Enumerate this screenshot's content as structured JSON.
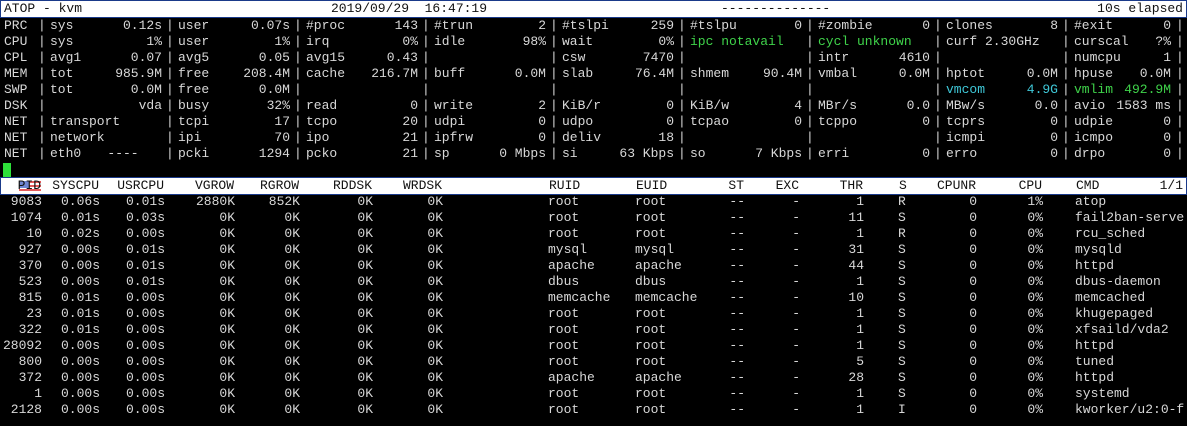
{
  "title_bar": {
    "app": "ATOP - kvm",
    "datetime": "2019/09/29  16:47:19",
    "dashes": "--------------",
    "elapsed": "10s elapsed"
  },
  "system_rows": [
    {
      "label": "PRC",
      "cells": [
        [
          "sys",
          "0.12s"
        ],
        [
          "user",
          "0.07s"
        ],
        [
          "#proc",
          "143"
        ],
        [
          "#trun",
          "2"
        ],
        [
          "#tslpi",
          "259"
        ],
        [
          "#tslpu",
          "0"
        ],
        [
          "#zombie",
          "0"
        ],
        [
          "clones",
          "8"
        ],
        [
          "#exit",
          "0"
        ]
      ]
    },
    {
      "label": "CPU",
      "cells": [
        [
          "sys",
          "1%"
        ],
        [
          "user",
          "1%"
        ],
        [
          "irq",
          "0%"
        ],
        [
          "idle",
          "98%"
        ],
        [
          "wait",
          "0%"
        ],
        [
          "ipc notavail",
          ""
        ],
        [
          "cycl unknown",
          ""
        ],
        [
          "curf 2.30GHz",
          ""
        ],
        [
          "curscal",
          "?%"
        ]
      ]
    },
    {
      "label": "CPL",
      "cells": [
        [
          "avg1",
          "0.07"
        ],
        [
          "avg5",
          "0.05"
        ],
        [
          "avg15",
          "0.43"
        ],
        [
          "",
          ""
        ],
        [
          "csw",
          "7470"
        ],
        [
          "",
          ""
        ],
        [
          "intr",
          "4610"
        ],
        [
          "",
          ""
        ],
        [
          "numcpu",
          "1"
        ]
      ]
    },
    {
      "label": "MEM",
      "cells": [
        [
          "tot",
          "985.9M"
        ],
        [
          "free",
          "208.4M"
        ],
        [
          "cache",
          "216.7M"
        ],
        [
          "buff",
          "0.0M"
        ],
        [
          "slab",
          "76.4M"
        ],
        [
          "shmem",
          "90.4M"
        ],
        [
          "vmbal",
          "0.0M"
        ],
        [
          "hptot",
          "0.0M"
        ],
        [
          "hpuse",
          "0.0M"
        ]
      ]
    },
    {
      "label": "SWP",
      "cells": [
        [
          "tot",
          "0.0M"
        ],
        [
          "free",
          "0.0M"
        ],
        [
          "",
          ""
        ],
        [
          "",
          ""
        ],
        [
          "",
          ""
        ],
        [
          "",
          ""
        ],
        [
          "",
          ""
        ],
        [
          "vmcom",
          "4.9G"
        ],
        [
          "vmlim",
          "492.9M"
        ]
      ]
    },
    {
      "label": "DSK",
      "cells": [
        [
          "",
          "vda"
        ],
        [
          "busy",
          "32%"
        ],
        [
          "read",
          "0"
        ],
        [
          "write",
          "2"
        ],
        [
          "KiB/r",
          "0"
        ],
        [
          "KiB/w",
          "4"
        ],
        [
          "MBr/s",
          "0.0"
        ],
        [
          "MBw/s",
          "0.0"
        ],
        [
          "avio",
          "1583 ms"
        ]
      ]
    },
    {
      "label": "NET",
      "cells": [
        [
          "transport",
          ""
        ],
        [
          "tcpi",
          "17"
        ],
        [
          "tcpo",
          "20"
        ],
        [
          "udpi",
          "0"
        ],
        [
          "udpo",
          "0"
        ],
        [
          "tcpao",
          "0"
        ],
        [
          "tcppo",
          "0"
        ],
        [
          "tcprs",
          "0"
        ],
        [
          "udpie",
          "0"
        ]
      ]
    },
    {
      "label": "NET",
      "cells": [
        [
          "network",
          ""
        ],
        [
          "ipi",
          "70"
        ],
        [
          "ipo",
          "21"
        ],
        [
          "ipfrw",
          "0"
        ],
        [
          "deliv",
          "18"
        ],
        [
          "",
          ""
        ],
        [
          "",
          ""
        ],
        [
          "icmpi",
          "0"
        ],
        [
          "icmpo",
          "0"
        ]
      ]
    },
    {
      "label": "NET",
      "cells": [
        [
          "eth0",
          "----   "
        ],
        [
          "pcki",
          "1294"
        ],
        [
          "pcko",
          "21"
        ],
        [
          "sp",
          "0 Mbps"
        ],
        [
          "si",
          "63 Kbps"
        ],
        [
          "so",
          "7 Kbps"
        ],
        [
          "erri",
          "0"
        ],
        [
          "erro",
          "0"
        ],
        [
          "drpo",
          "0"
        ]
      ]
    }
  ],
  "colors": {
    "ipc_notavail": "#3fd34a",
    "cycl_unknown": "#3fd34a",
    "vmcom": "#3fc8d8",
    "vmlim": "#3fd34a",
    "cursor": "#2ee03a"
  },
  "process_table": {
    "columns": [
      "PID",
      "SYSCPU",
      "USRCPU",
      "VGROW",
      "RGROW",
      "RDDSK",
      "WRDSK",
      "RUID",
      "EUID",
      "ST",
      "EXC",
      "THR",
      "S",
      "CPUNR",
      "CPU",
      "CMD"
    ],
    "page": "1/1",
    "rows": [
      [
        "9083",
        "0.06s",
        "0.01s",
        "2880K",
        "852K",
        "0K",
        "0K",
        "root",
        "root",
        "--",
        "-",
        "1",
        "R",
        "0",
        "1%",
        "atop"
      ],
      [
        "1074",
        "0.01s",
        "0.03s",
        "0K",
        "0K",
        "0K",
        "0K",
        "root",
        "root",
        "--",
        "-",
        "11",
        "S",
        "0",
        "0%",
        "fail2ban-serve"
      ],
      [
        "10",
        "0.02s",
        "0.00s",
        "0K",
        "0K",
        "0K",
        "0K",
        "root",
        "root",
        "--",
        "-",
        "1",
        "R",
        "0",
        "0%",
        "rcu_sched"
      ],
      [
        "927",
        "0.00s",
        "0.01s",
        "0K",
        "0K",
        "0K",
        "0K",
        "mysql",
        "mysql",
        "--",
        "-",
        "31",
        "S",
        "0",
        "0%",
        "mysqld"
      ],
      [
        "370",
        "0.00s",
        "0.01s",
        "0K",
        "0K",
        "0K",
        "0K",
        "apache",
        "apache",
        "--",
        "-",
        "44",
        "S",
        "0",
        "0%",
        "httpd"
      ],
      [
        "523",
        "0.00s",
        "0.01s",
        "0K",
        "0K",
        "0K",
        "0K",
        "dbus",
        "dbus",
        "--",
        "-",
        "1",
        "S",
        "0",
        "0%",
        "dbus-daemon"
      ],
      [
        "815",
        "0.01s",
        "0.00s",
        "0K",
        "0K",
        "0K",
        "0K",
        "memcache",
        "memcache",
        "--",
        "-",
        "10",
        "S",
        "0",
        "0%",
        "memcached"
      ],
      [
        "23",
        "0.01s",
        "0.00s",
        "0K",
        "0K",
        "0K",
        "0K",
        "root",
        "root",
        "--",
        "-",
        "1",
        "S",
        "0",
        "0%",
        "khugepaged"
      ],
      [
        "322",
        "0.01s",
        "0.00s",
        "0K",
        "0K",
        "0K",
        "0K",
        "root",
        "root",
        "--",
        "-",
        "1",
        "S",
        "0",
        "0%",
        "xfsaild/vda2"
      ],
      [
        "28092",
        "0.00s",
        "0.00s",
        "0K",
        "0K",
        "0K",
        "0K",
        "root",
        "root",
        "--",
        "-",
        "1",
        "S",
        "0",
        "0%",
        "httpd"
      ],
      [
        "800",
        "0.00s",
        "0.00s",
        "0K",
        "0K",
        "0K",
        "0K",
        "root",
        "root",
        "--",
        "-",
        "5",
        "S",
        "0",
        "0%",
        "tuned"
      ],
      [
        "372",
        "0.00s",
        "0.00s",
        "0K",
        "0K",
        "0K",
        "0K",
        "apache",
        "apache",
        "--",
        "-",
        "28",
        "S",
        "0",
        "0%",
        "httpd"
      ],
      [
        "1",
        "0.00s",
        "0.00s",
        "0K",
        "0K",
        "0K",
        "0K",
        "root",
        "root",
        "--",
        "-",
        "1",
        "S",
        "0",
        "0%",
        "systemd"
      ],
      [
        "2128",
        "0.00s",
        "0.00s",
        "0K",
        "0K",
        "0K",
        "0K",
        "root",
        "root",
        "--",
        "-",
        "1",
        "I",
        "0",
        "0%",
        "kworker/u2:0-f"
      ]
    ]
  }
}
